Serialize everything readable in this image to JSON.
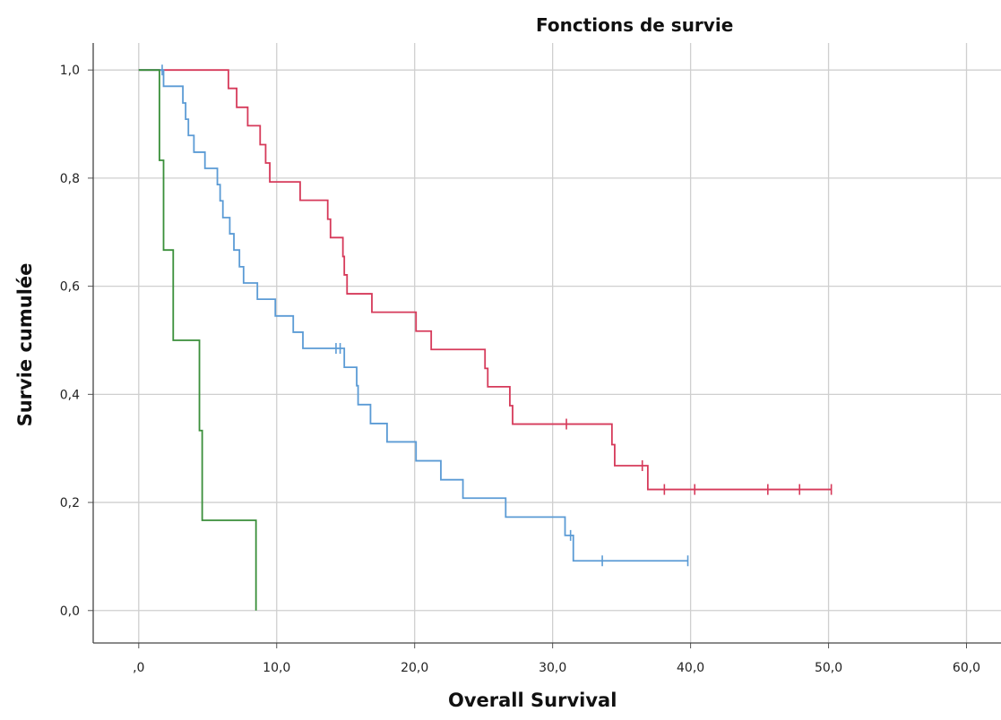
{
  "chart_data": {
    "type": "line",
    "title": "Fonctions de survie",
    "xlabel": "Overall Survival",
    "ylabel": "Survie cumulée",
    "xlim": [
      -3.3,
      62.5
    ],
    "ylim": [
      -0.06,
      1.05
    ],
    "x_ticks": [
      0,
      10,
      20,
      30,
      40,
      50,
      60
    ],
    "x_tick_labels": [
      ",0",
      "10,0",
      "20,0",
      "30,0",
      "40,0",
      "50,0",
      "60,0"
    ],
    "y_ticks": [
      0,
      0.2,
      0.4,
      0.6,
      0.8,
      1.0
    ],
    "y_tick_labels": [
      "0,0",
      "0,2",
      "0,4",
      "0,6",
      "0,8",
      "1,0"
    ],
    "grid": true,
    "series": [
      {
        "color": "#d63a5a",
        "steps": [
          [
            0,
            1.0
          ],
          [
            6.5,
            0.966
          ],
          [
            7.1,
            0.931
          ],
          [
            7.9,
            0.897
          ],
          [
            8.8,
            0.862
          ],
          [
            9.2,
            0.828
          ],
          [
            9.5,
            0.793
          ],
          [
            11.7,
            0.759
          ],
          [
            13.7,
            0.724
          ],
          [
            13.9,
            0.69
          ],
          [
            14.8,
            0.655
          ],
          [
            14.9,
            0.621
          ],
          [
            15.1,
            0.586
          ],
          [
            16.9,
            0.552
          ],
          [
            20.1,
            0.517
          ],
          [
            21.2,
            0.483
          ],
          [
            25.1,
            0.448
          ],
          [
            25.3,
            0.414
          ],
          [
            26.9,
            0.379
          ],
          [
            27.1,
            0.345
          ],
          [
            34.3,
            0.307
          ],
          [
            34.5,
            0.268
          ],
          [
            36.9,
            0.224
          ]
        ],
        "censored": [
          [
            31.0,
            0.345
          ],
          [
            36.5,
            0.268
          ],
          [
            38.1,
            0.224
          ],
          [
            40.3,
            0.224
          ],
          [
            45.6,
            0.224
          ],
          [
            47.9,
            0.224
          ],
          [
            50.2,
            0.224
          ]
        ],
        "end_x": 50.2
      },
      {
        "color": "#5b9bd5",
        "steps": [
          [
            0,
            1.0
          ],
          [
            1.8,
            0.97
          ],
          [
            3.2,
            0.939
          ],
          [
            3.4,
            0.909
          ],
          [
            3.6,
            0.879
          ],
          [
            4.0,
            0.848
          ],
          [
            4.8,
            0.818
          ],
          [
            5.7,
            0.788
          ],
          [
            5.9,
            0.758
          ],
          [
            6.1,
            0.727
          ],
          [
            6.6,
            0.697
          ],
          [
            6.9,
            0.667
          ],
          [
            7.3,
            0.636
          ],
          [
            7.6,
            0.606
          ],
          [
            8.6,
            0.576
          ],
          [
            9.9,
            0.545
          ],
          [
            11.2,
            0.515
          ],
          [
            11.9,
            0.485
          ],
          [
            14.9,
            0.45
          ],
          [
            15.8,
            0.416
          ],
          [
            15.9,
            0.381
          ],
          [
            16.8,
            0.346
          ],
          [
            18.0,
            0.312
          ],
          [
            20.1,
            0.277
          ],
          [
            21.9,
            0.242
          ],
          [
            23.5,
            0.208
          ],
          [
            26.6,
            0.173
          ],
          [
            30.9,
            0.139
          ],
          [
            31.5,
            0.092
          ]
        ],
        "censored": [
          [
            1.7,
            1.0
          ],
          [
            14.3,
            0.485
          ],
          [
            14.6,
            0.485
          ],
          [
            31.3,
            0.139
          ],
          [
            33.6,
            0.092
          ],
          [
            39.8,
            0.092
          ]
        ],
        "end_x": 39.8
      },
      {
        "color": "#3a8f3a",
        "steps": [
          [
            0,
            1.0
          ],
          [
            1.5,
            0.833
          ],
          [
            1.8,
            0.667
          ],
          [
            2.5,
            0.5
          ],
          [
            4.4,
            0.333
          ],
          [
            4.6,
            0.167
          ],
          [
            8.5,
            0.0
          ]
        ],
        "censored": [],
        "end_x": 8.5
      }
    ]
  }
}
